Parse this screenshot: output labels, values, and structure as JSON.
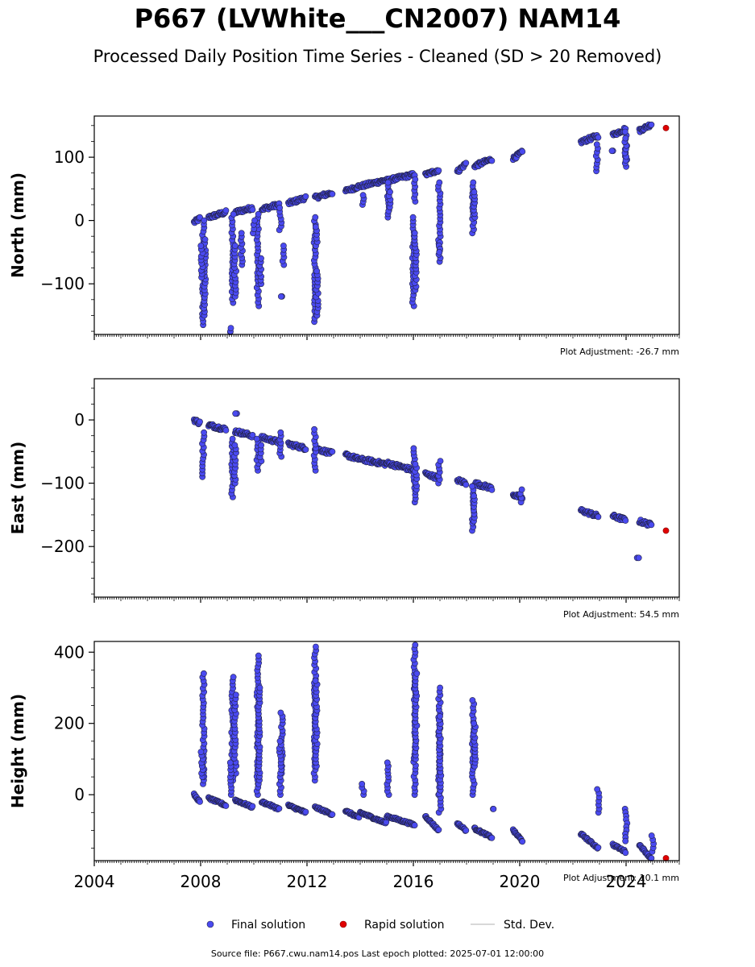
{
  "title": "P667 (LVWhite___CN2007) NAM14",
  "subtitle": "Processed Daily Position Time Series - Cleaned (SD > 20 Removed)",
  "colors": {
    "final": "#4a4af0",
    "rapid": "#e00000",
    "std_dev": "#cccccc",
    "edge": "#222244"
  },
  "legend": {
    "final": "Final solution",
    "rapid": "Rapid solution",
    "std": "Std. Dev."
  },
  "footer": "Source file: P667.cwu.nam14.pos  Last epoch plotted: 2025-07-01 12:00:00",
  "chart_data": [
    {
      "type": "scatter",
      "ylabel": "North (mm)",
      "xlim": [
        2004,
        2026
      ],
      "ylim": [
        -180,
        165
      ],
      "yticks": [
        -100,
        0,
        100
      ],
      "adjustment": "Plot Adjustment: -26.7 mm",
      "series": [
        {
          "name": "Final solution",
          "segments": [
            [
              2007.75,
              2007.97,
              -3,
              3
            ],
            [
              2008.3,
              2008.95,
              5,
              13
            ],
            [
              2009.3,
              2009.95,
              13,
              20
            ],
            [
              2010.3,
              2010.95,
              18,
              25
            ],
            [
              2011.3,
              2011.95,
              27,
              36
            ],
            [
              2012.3,
              2012.95,
              36,
              44
            ],
            [
              2013.45,
              2013.95,
              46,
              54
            ],
            [
              2014.0,
              2014.98,
              54,
              64
            ],
            [
              2015.0,
              2016.05,
              63,
              73
            ],
            [
              2016.45,
              2016.95,
              72,
              80
            ],
            [
              2017.65,
              2017.98,
              77,
              90
            ],
            [
              2018.3,
              2018.95,
              86,
              97
            ],
            [
              2019.75,
              2020.1,
              98,
              108
            ],
            [
              2022.3,
              2022.95,
              124,
              134
            ],
            [
              2023.5,
              2023.98,
              135,
              145
            ],
            [
              2024.5,
              2024.95,
              142,
              152
            ]
          ],
          "spikes": [
            [
              2008.1,
              -165,
              0
            ],
            [
              2008.15,
              -150,
              -30
            ],
            [
              2008.05,
              -90,
              -40
            ],
            [
              2009.2,
              -130,
              10
            ],
            [
              2009.3,
              -120,
              -40
            ],
            [
              2009.55,
              -70,
              -20
            ],
            [
              2009.15,
              -180,
              -170
            ],
            [
              2010.15,
              -135,
              10
            ],
            [
              2010.25,
              -100,
              -60
            ],
            [
              2010.0,
              -20,
              0
            ],
            [
              2011.05,
              -120,
              -120
            ],
            [
              2011.1,
              -70,
              -40
            ],
            [
              2011.0,
              -15,
              20
            ],
            [
              2012.3,
              -160,
              5
            ],
            [
              2012.38,
              -150,
              -80
            ],
            [
              2012.35,
              -40,
              -10
            ],
            [
              2014.1,
              25,
              40
            ],
            [
              2015.05,
              5,
              60
            ],
            [
              2015.1,
              15,
              45
            ],
            [
              2016.0,
              -135,
              5
            ],
            [
              2016.08,
              -110,
              -20
            ],
            [
              2016.05,
              30,
              65
            ],
            [
              2016.98,
              -65,
              60
            ],
            [
              2017.0,
              -35,
              -50
            ],
            [
              2018.25,
              -20,
              60
            ],
            [
              2018.3,
              5,
              45
            ],
            [
              2022.9,
              78,
              120
            ],
            [
              2023.5,
              110,
              110
            ],
            [
              2024.0,
              85,
              140
            ],
            [
              2023.98,
              95,
              130
            ]
          ]
        },
        {
          "name": "Rapid solution",
          "points": [
            [
              2025.5,
              146
            ]
          ]
        }
      ]
    },
    {
      "type": "scatter",
      "ylabel": "East (mm)",
      "xlim": [
        2004,
        2026
      ],
      "ylim": [
        -280,
        65
      ],
      "yticks": [
        -200,
        -100,
        0
      ],
      "adjustment": "Plot Adjustment: 54.5 mm",
      "series": [
        {
          "name": "Final solution",
          "segments": [
            [
              2007.75,
              2007.97,
              0,
              -5
            ],
            [
              2008.3,
              2008.95,
              -8,
              -15
            ],
            [
              2009.3,
              2009.95,
              -18,
              -25
            ],
            [
              2010.3,
              2010.95,
              -28,
              -35
            ],
            [
              2011.3,
              2011.95,
              -38,
              -45
            ],
            [
              2012.3,
              2012.95,
              -45,
              -53
            ],
            [
              2013.45,
              2013.95,
              -55,
              -62
            ],
            [
              2014.0,
              2014.98,
              -62,
              -70
            ],
            [
              2015.0,
              2016.05,
              -68,
              -80
            ],
            [
              2016.45,
              2016.95,
              -85,
              -92
            ],
            [
              2017.65,
              2017.98,
              -95,
              -100
            ],
            [
              2018.3,
              2018.95,
              -100,
              -108
            ],
            [
              2019.75,
              2020.1,
              -118,
              -124
            ],
            [
              2022.3,
              2022.95,
              -143,
              -152
            ],
            [
              2023.5,
              2023.98,
              -152,
              -158
            ],
            [
              2024.5,
              2024.95,
              -160,
              -166
            ]
          ],
          "spikes": [
            [
              2008.1,
              -90,
              -20
            ],
            [
              2009.2,
              -122,
              -30
            ],
            [
              2009.3,
              -100,
              -40
            ],
            [
              2009.35,
              10,
              10
            ],
            [
              2010.15,
              -80,
              -30
            ],
            [
              2010.25,
              -65,
              -40
            ],
            [
              2011.0,
              -58,
              -20
            ],
            [
              2012.3,
              -80,
              -15
            ],
            [
              2016.05,
              -130,
              -45
            ],
            [
              2016.1,
              -110,
              -70
            ],
            [
              2016.98,
              -100,
              -65
            ],
            [
              2018.25,
              -175,
              -105
            ],
            [
              2018.3,
              -160,
              -120
            ],
            [
              2020.05,
              -130,
              -110
            ],
            [
              2024.45,
              -218,
              -218
            ]
          ]
        },
        {
          "name": "Rapid solution",
          "points": [
            [
              2025.5,
              -175
            ]
          ]
        }
      ]
    },
    {
      "type": "scatter",
      "ylabel": "Height (mm)",
      "xlim": [
        2004,
        2026
      ],
      "ylim": [
        -185,
        430
      ],
      "yticks": [
        0,
        200,
        400
      ],
      "adjustment": "Plot Adjustment: 10.1 mm",
      "series": [
        {
          "name": "Final solution",
          "segments": [
            [
              2007.75,
              2007.97,
              0,
              -20
            ],
            [
              2008.3,
              2008.95,
              -10,
              -30
            ],
            [
              2009.3,
              2009.95,
              -15,
              -35
            ],
            [
              2010.3,
              2010.95,
              -20,
              -40
            ],
            [
              2011.3,
              2011.95,
              -30,
              -50
            ],
            [
              2012.3,
              2012.95,
              -35,
              -55
            ],
            [
              2013.45,
              2013.95,
              -45,
              -65
            ],
            [
              2014.0,
              2014.98,
              -50,
              -80
            ],
            [
              2015.0,
              2016.05,
              -60,
              -85
            ],
            [
              2016.45,
              2016.95,
              -60,
              -100
            ],
            [
              2017.65,
              2017.98,
              -80,
              -100
            ],
            [
              2018.3,
              2018.95,
              -95,
              -120
            ],
            [
              2019.75,
              2020.1,
              -100,
              -130
            ],
            [
              2022.3,
              2022.95,
              -110,
              -150
            ],
            [
              2023.5,
              2023.98,
              -140,
              -160
            ],
            [
              2024.5,
              2024.95,
              -140,
              -180
            ]
          ],
          "spikes": [
            [
              2008.1,
              30,
              340
            ],
            [
              2008.05,
              50,
              120
            ],
            [
              2009.2,
              40,
              330
            ],
            [
              2009.3,
              60,
              280
            ],
            [
              2009.15,
              0,
              90
            ],
            [
              2010.15,
              0,
              390
            ],
            [
              2010.2,
              30,
              300
            ],
            [
              2011.05,
              60,
              230
            ],
            [
              2011.0,
              0,
              150
            ],
            [
              2012.3,
              40,
              415
            ],
            [
              2012.35,
              80,
              320
            ],
            [
              2014.1,
              0,
              30
            ],
            [
              2015.05,
              0,
              90
            ],
            [
              2016.05,
              0,
              420
            ],
            [
              2016.1,
              100,
              340
            ],
            [
              2016.98,
              0,
              300
            ],
            [
              2017.0,
              -50,
              220
            ],
            [
              2018.25,
              0,
              265
            ],
            [
              2018.3,
              80,
              200
            ],
            [
              2019.0,
              -40,
              -40
            ],
            [
              2022.95,
              -50,
              15
            ],
            [
              2024.0,
              -40,
              -130
            ],
            [
              2025.0,
              -160,
              -115
            ]
          ]
        },
        {
          "name": "Rapid solution",
          "points": [
            [
              2025.5,
              -180
            ]
          ]
        }
      ],
      "xticks": [
        "2004",
        "2008",
        "2012",
        "2016",
        "2020",
        "2024"
      ]
    }
  ]
}
